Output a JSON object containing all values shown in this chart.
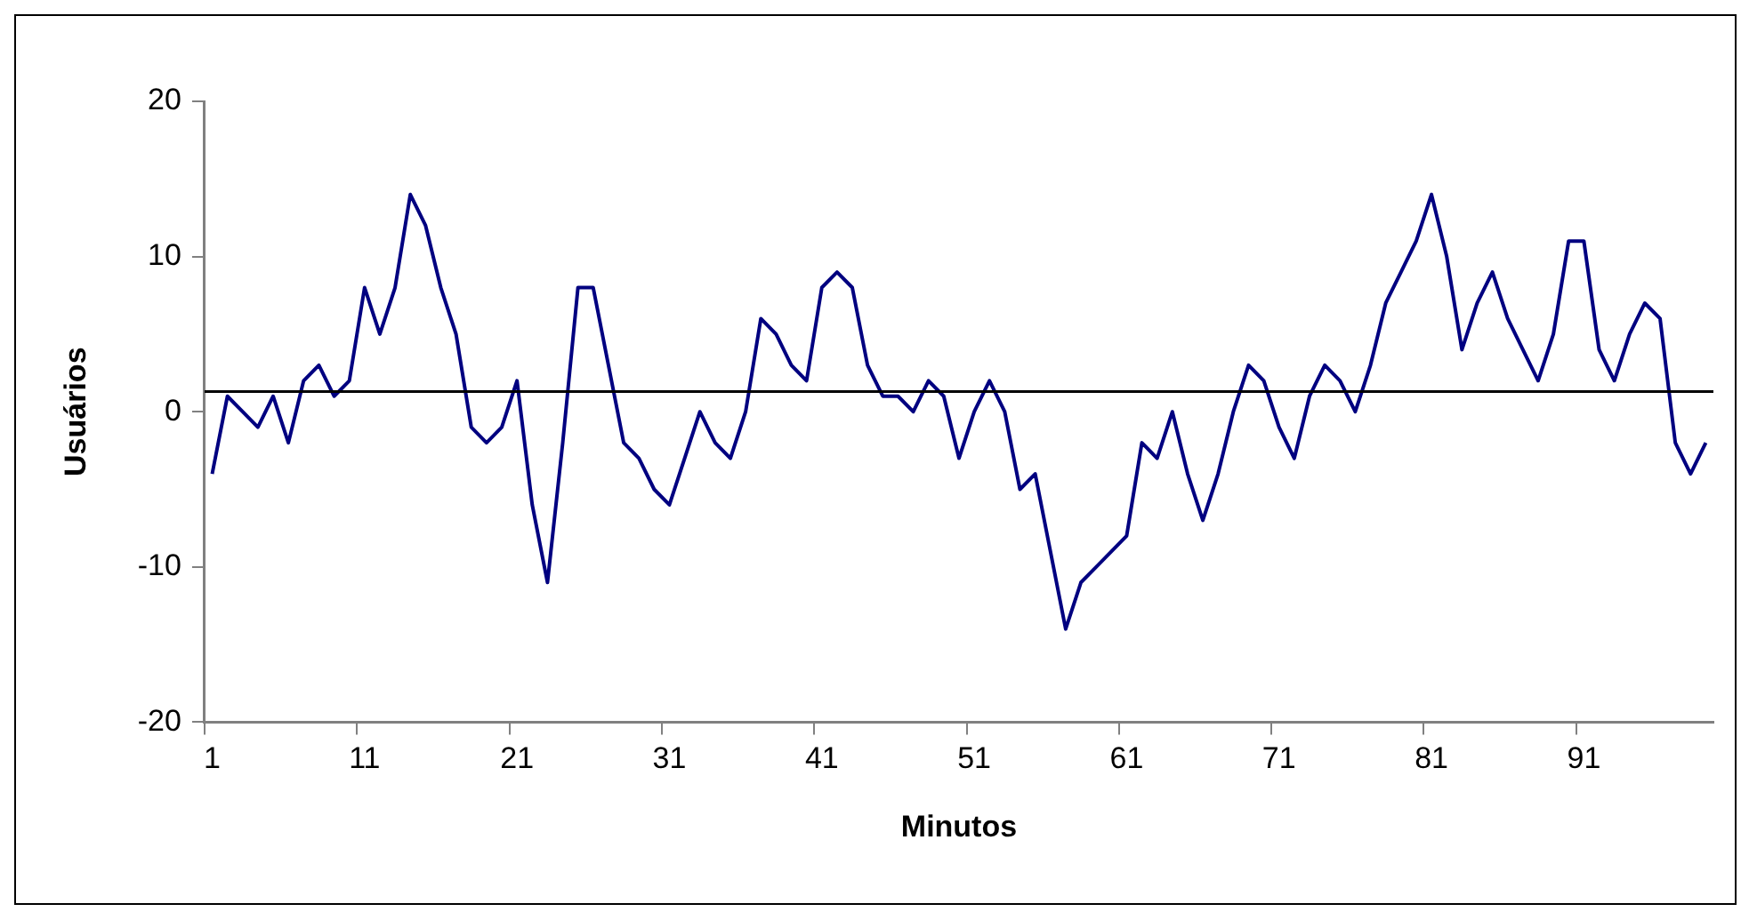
{
  "chart_data": {
    "type": "line",
    "xlabel": "Minutos",
    "ylabel": "Usuários",
    "categories": [
      "1",
      null,
      null,
      null,
      null,
      null,
      null,
      null,
      null,
      null,
      "11",
      null,
      null,
      null,
      null,
      null,
      null,
      null,
      null,
      null,
      "21",
      null,
      null,
      null,
      null,
      null,
      null,
      null,
      null,
      null,
      "31",
      null,
      null,
      null,
      null,
      null,
      null,
      null,
      null,
      null,
      "41",
      null,
      null,
      null,
      null,
      null,
      null,
      null,
      null,
      null,
      "51",
      null,
      null,
      null,
      null,
      null,
      null,
      null,
      null,
      null,
      "61",
      null,
      null,
      null,
      null,
      null,
      null,
      null,
      null,
      null,
      "71",
      null,
      null,
      null,
      null,
      null,
      null,
      null,
      null,
      null,
      "81",
      null,
      null,
      null,
      null,
      null,
      null,
      null,
      null,
      null,
      "91",
      null,
      null,
      null,
      null,
      null,
      null,
      null,
      null
    ],
    "series": [
      {
        "color": "#000080",
        "values": [
          -4,
          1,
          0,
          -1,
          1,
          -2,
          2,
          3,
          1,
          2,
          8,
          5,
          8,
          14,
          12,
          8,
          5,
          -1,
          -2,
          -1,
          2,
          -6,
          -11,
          -2,
          8,
          8,
          3,
          -2,
          -3,
          -5,
          -6,
          -3,
          0,
          -2,
          -3,
          0,
          6,
          5,
          3,
          2,
          8,
          9,
          8,
          3,
          1,
          1,
          0,
          2,
          1,
          -3,
          0,
          2,
          0,
          -5,
          -4,
          -9,
          -14,
          -11,
          -10,
          -9,
          -8,
          -2,
          -3,
          0,
          -4,
          -7,
          -4,
          0,
          3,
          2,
          -1,
          -3,
          1,
          3,
          2,
          0,
          3,
          7,
          9,
          11,
          14,
          10,
          4,
          7,
          9,
          6,
          4,
          2,
          5,
          11,
          11,
          4,
          2,
          5,
          7,
          6,
          -2,
          -4,
          -2
        ]
      }
    ],
    "ylim": [
      -20,
      20
    ],
    "yticks": [
      -20,
      -10,
      0,
      10,
      20
    ],
    "grid": false,
    "legend": false,
    "marker": "none",
    "line_style": "solid",
    "ref_lines": [
      {
        "axis": "y",
        "value": 1.3,
        "color": "#000000"
      }
    ]
  }
}
